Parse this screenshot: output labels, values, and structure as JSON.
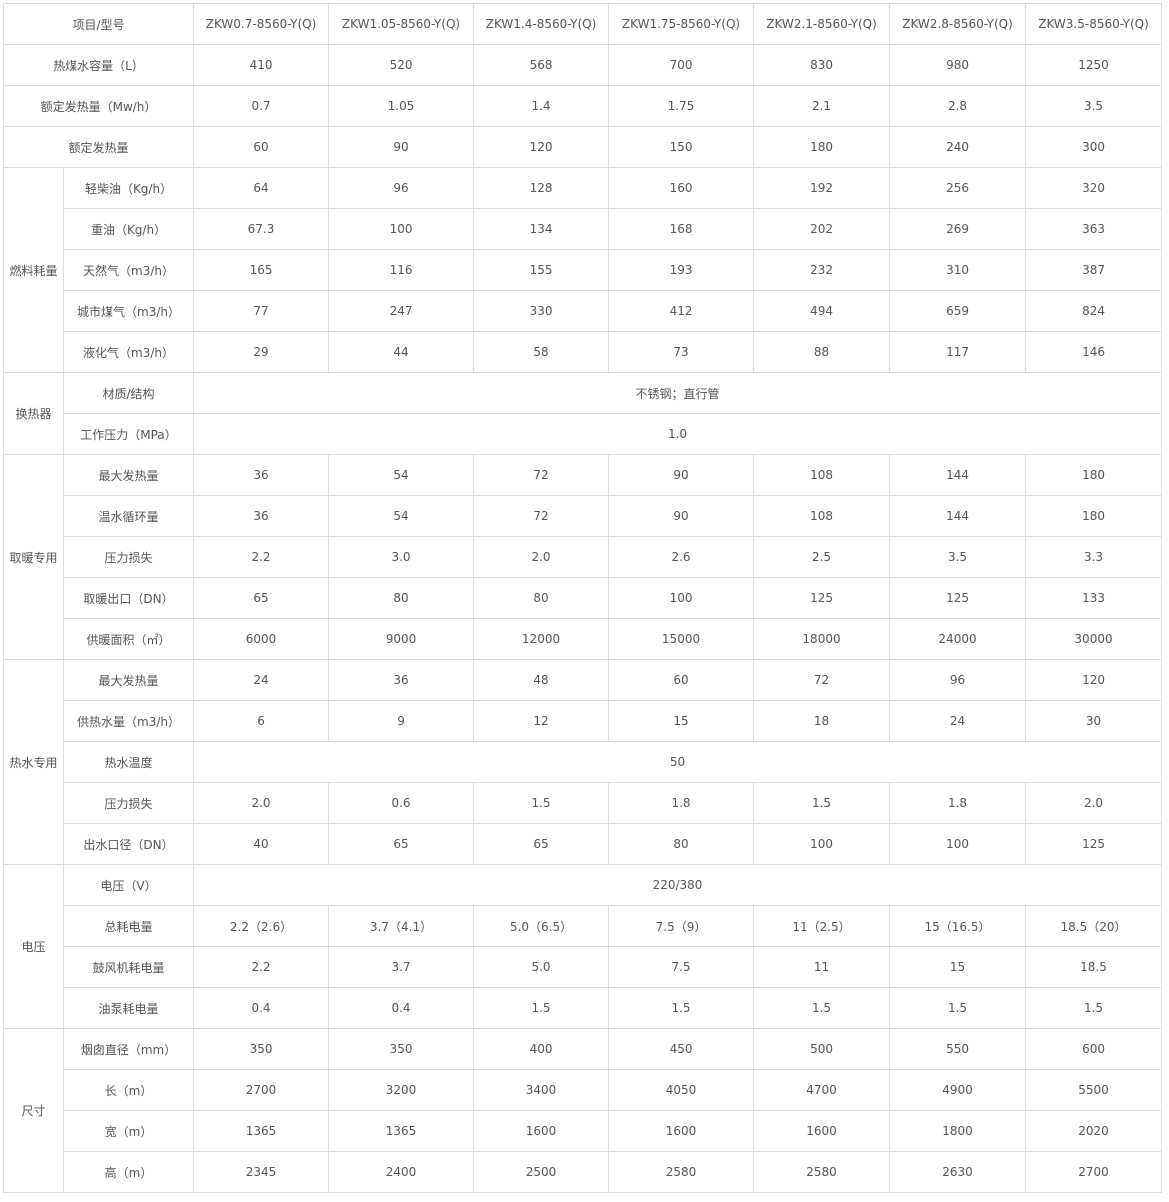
{
  "header": {
    "label": "项目/型号",
    "models": [
      "ZKW0.7-8560-Y(Q)",
      "ZKW1.05-8560-Y(Q)",
      "ZKW1.4-8560-Y(Q)",
      "ZKW1.75-8560-Y(Q)",
      "ZKW2.1-8560-Y(Q)",
      "ZKW2.8-8560-Y(Q)",
      "ZKW3.5-8560-Y(Q)"
    ]
  },
  "rows": [
    {
      "group": null,
      "label": "热煤水容量（L）",
      "values": [
        "410",
        "520",
        "568",
        "700",
        "830",
        "980",
        "1250"
      ]
    },
    {
      "group": null,
      "label": "额定发热量（Mw/h）",
      "values": [
        "0.7",
        "1.05",
        "1.4",
        "1.75",
        "2.1",
        "2.8",
        "3.5"
      ]
    },
    {
      "group": null,
      "label": "额定发热量",
      "values": [
        "60",
        "90",
        "120",
        "150",
        "180",
        "240",
        "300"
      ]
    },
    {
      "group": "燃料耗量",
      "label": "轻柴油（Kg/h）",
      "values": [
        "64",
        "96",
        "128",
        "160",
        "192",
        "256",
        "320"
      ]
    },
    {
      "group": "燃料耗量",
      "label": "重油（Kg/h）",
      "values": [
        "67.3",
        "100",
        "134",
        "168",
        "202",
        "269",
        "363"
      ]
    },
    {
      "group": "燃料耗量",
      "label": "天然气（m3/h）",
      "values": [
        "165",
        "116",
        "155",
        "193",
        "232",
        "310",
        "387"
      ]
    },
    {
      "group": "燃料耗量",
      "label": "城市煤气（m3/h）",
      "values": [
        "77",
        "247",
        "330",
        "412",
        "494",
        "659",
        "824"
      ]
    },
    {
      "group": "燃料耗量",
      "label": "液化气（m3/h）",
      "values": [
        "29",
        "44",
        "58",
        "73",
        "88",
        "117",
        "146"
      ]
    },
    {
      "group": "换热器",
      "label": "材质/结构",
      "merged": "不锈钢；直行管"
    },
    {
      "group": "换热器",
      "label": "工作压力（MPa）",
      "merged": "1.0"
    },
    {
      "group": "取暖专用",
      "label": "最大发热量",
      "values": [
        "36",
        "54",
        "72",
        "90",
        "108",
        "144",
        "180"
      ]
    },
    {
      "group": "取暖专用",
      "label": "温水循环量",
      "values": [
        "36",
        "54",
        "72",
        "90",
        "108",
        "144",
        "180"
      ]
    },
    {
      "group": "取暖专用",
      "label": "压力损失",
      "values": [
        "2.2",
        "3.0",
        "2.0",
        "2.6",
        "2.5",
        "3.5",
        "3.3"
      ]
    },
    {
      "group": "取暖专用",
      "label": "取暖出口（DN）",
      "values": [
        "65",
        "80",
        "80",
        "100",
        "125",
        "125",
        "133"
      ]
    },
    {
      "group": "取暖专用",
      "label": "供暖面积（㎡）",
      "values": [
        "6000",
        "9000",
        "12000",
        "15000",
        "18000",
        "24000",
        "30000"
      ]
    },
    {
      "group": "热水专用",
      "label": "最大发热量",
      "values": [
        "24",
        "36",
        "48",
        "60",
        "72",
        "96",
        "120"
      ]
    },
    {
      "group": "热水专用",
      "label": "供热水量（m3/h）",
      "values": [
        "6",
        "9",
        "12",
        "15",
        "18",
        "24",
        "30"
      ]
    },
    {
      "group": "热水专用",
      "label": "热水温度",
      "merged": "50"
    },
    {
      "group": "热水专用",
      "label": "压力损失",
      "values": [
        "2.0",
        "0.6",
        "1.5",
        "1.8",
        "1.5",
        "1.8",
        "2.0"
      ]
    },
    {
      "group": "热水专用",
      "label": "出水口径（DN）",
      "values": [
        "40",
        "65",
        "65",
        "80",
        "100",
        "100",
        "125"
      ]
    },
    {
      "group": "电压",
      "label": "电压（V）",
      "merged": "220/380"
    },
    {
      "group": "电压",
      "label": "总耗电量",
      "values": [
        "2.2（2.6）",
        "3.7（4.1）",
        "5.0（6.5）",
        "7.5（9）",
        "11（2.5）",
        "15（16.5）",
        "18.5（20）"
      ]
    },
    {
      "group": "电压",
      "label": "鼓风机耗电量",
      "values": [
        "2.2",
        "3.7",
        "5.0",
        "7.5",
        "11",
        "15",
        "18.5"
      ]
    },
    {
      "group": "电压",
      "label": "油泵耗电量",
      "values": [
        "0.4",
        "0.4",
        "1.5",
        "1.5",
        "1.5",
        "1.5",
        "1.5"
      ]
    },
    {
      "group": "尺寸",
      "label": "烟囱直径（mm）",
      "values": [
        "350",
        "350",
        "400",
        "450",
        "500",
        "550",
        "600"
      ]
    },
    {
      "group": "尺寸",
      "label": "长（m）",
      "values": [
        "2700",
        "3200",
        "3400",
        "4050",
        "4700",
        "4900",
        "5500"
      ]
    },
    {
      "group": "尺寸",
      "label": "宽（m）",
      "values": [
        "1365",
        "1365",
        "1600",
        "1600",
        "1600",
        "1800",
        "2020"
      ]
    },
    {
      "group": "尺寸",
      "label": "高（m）",
      "values": [
        "2345",
        "2400",
        "2500",
        "2580",
        "2580",
        "2630",
        "2700"
      ]
    }
  ]
}
